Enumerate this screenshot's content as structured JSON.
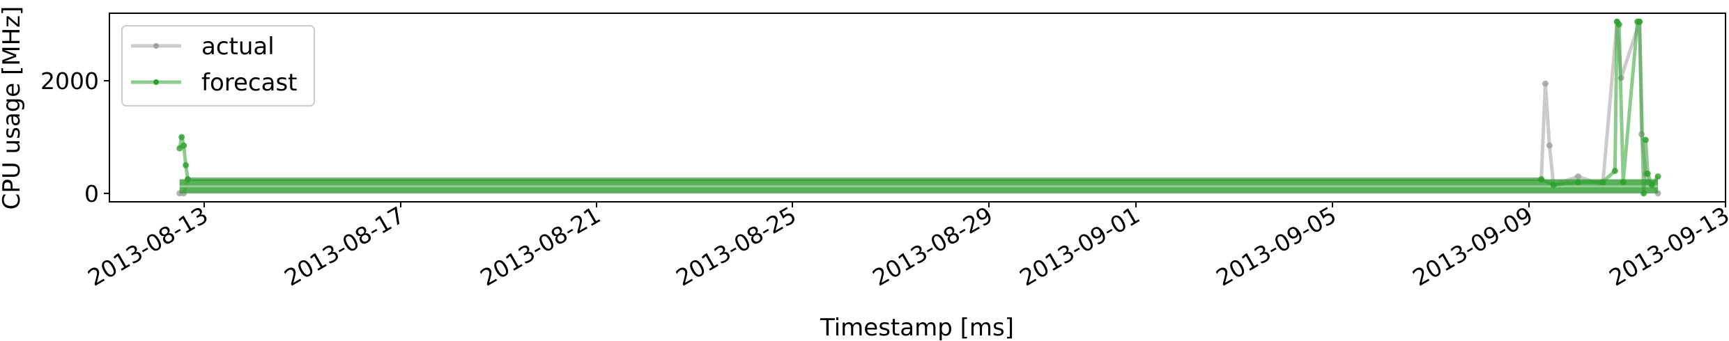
{
  "chart_data": {
    "type": "line",
    "xlabel": "Timestamp [ms]",
    "ylabel": "CPU usage [MHz]",
    "x_ticks": [
      "2013-08-13",
      "2013-08-17",
      "2013-08-21",
      "2013-08-25",
      "2013-08-29",
      "2013-09-01",
      "2013-09-05",
      "2013-09-09",
      "2013-09-13"
    ],
    "y_ticks": [
      0,
      2000
    ],
    "ylim": [
      -150,
      3200
    ],
    "legend": {
      "position": "top-left",
      "entries": [
        "actual",
        "forecast"
      ]
    },
    "grid": false,
    "series": [
      {
        "name": "actual",
        "color": "#a0a0a0",
        "band": [
          0,
          250
        ],
        "x": [
          "2013-08-12T12:00",
          "2013-08-12T14:00",
          "2013-08-12T16:00",
          "2013-09-09T06:00",
          "2013-09-09T08:00",
          "2013-09-09T10:00",
          "2013-09-09T12:00",
          "2013-09-10T00:00",
          "2013-09-10T12:00",
          "2013-09-10T19:00",
          "2013-09-10T21:00",
          "2013-09-11T06:00",
          "2013-09-11T07:00",
          "2013-09-11T09:00",
          "2013-09-11T10:00",
          "2013-09-11T12:00",
          "2013-09-11T15:00"
        ],
        "y": [
          0,
          0,
          250,
          250,
          1950,
          850,
          150,
          300,
          150,
          3050,
          2050,
          3050,
          1050,
          350,
          200,
          150,
          0
        ]
      },
      {
        "name": "forecast",
        "color": "#2ca02c",
        "band": [
          0,
          250
        ],
        "x": [
          "2013-08-12T12:00",
          "2013-08-12T13:00",
          "2013-08-12T14:00",
          "2013-08-12T15:00",
          "2013-08-12T16:00",
          "2013-09-09T06:00",
          "2013-09-09T12:00",
          "2013-09-10T00:00",
          "2013-09-10T12:00",
          "2013-09-10T18:00",
          "2013-09-10T19:00",
          "2013-09-10T20:00",
          "2013-09-10T22:00",
          "2013-09-11T05:00",
          "2013-09-11T06:00",
          "2013-09-11T08:00",
          "2013-09-11T09:00",
          "2013-09-11T10:00",
          "2013-09-11T12:00",
          "2013-09-11T15:00"
        ],
        "y": [
          800,
          1000,
          850,
          500,
          250,
          250,
          150,
          200,
          200,
          400,
          3050,
          3000,
          200,
          3050,
          3050,
          0,
          950,
          350,
          150,
          300
        ]
      }
    ]
  }
}
